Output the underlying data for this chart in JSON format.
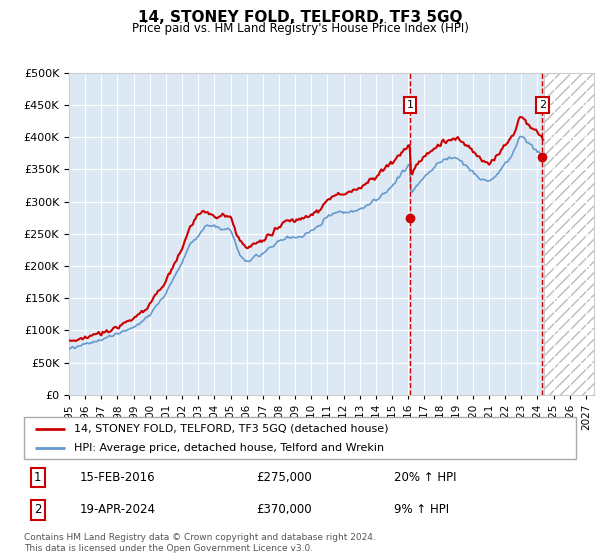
{
  "title": "14, STONEY FOLD, TELFORD, TF3 5GQ",
  "subtitle": "Price paid vs. HM Land Registry's House Price Index (HPI)",
  "ytick_vals": [
    0,
    50000,
    100000,
    150000,
    200000,
    250000,
    300000,
    350000,
    400000,
    450000,
    500000
  ],
  "xlim_start": 1995.0,
  "xlim_end": 2027.5,
  "ylim": [
    0,
    500000
  ],
  "background_color": "#dce9f5",
  "grid_color": "#ffffff",
  "purchase1_x": 2016.12,
  "purchase1_y": 275000,
  "purchase1_label": "1",
  "purchase2_x": 2024.3,
  "purchase2_y": 370000,
  "purchase2_label": "2",
  "legend_line1": "14, STONEY FOLD, TELFORD, TF3 5GQ (detached house)",
  "legend_line2": "HPI: Average price, detached house, Telford and Wrekin",
  "annotation1_date": "15-FEB-2016",
  "annotation1_price": "£275,000",
  "annotation1_hpi": "20% ↑ HPI",
  "annotation2_date": "19-APR-2024",
  "annotation2_price": "£370,000",
  "annotation2_hpi": "9% ↑ HPI",
  "footer": "Contains HM Land Registry data © Crown copyright and database right 2024.\nThis data is licensed under the Open Government Licence v3.0.",
  "line_color_red": "#cc0000",
  "line_color_blue": "#6699cc"
}
